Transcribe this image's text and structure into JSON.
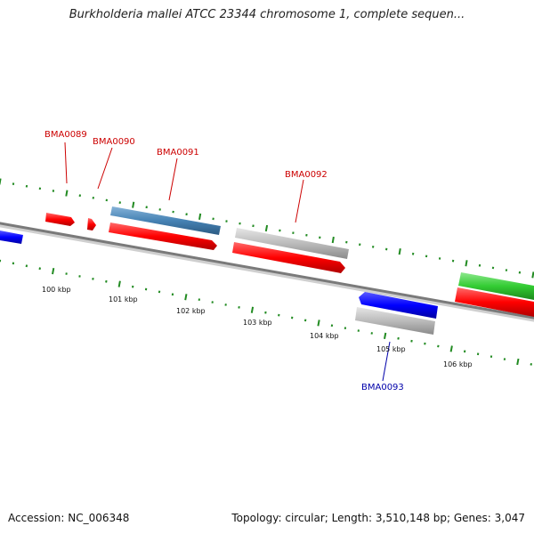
{
  "title": "Burkholderia mallei ATCC 23344 chromosome 1, complete sequen...",
  "footer": {
    "accession": "Accession: NC_006348",
    "summary": "Topology: circular; Length: 3,510,148 bp; Genes: 3,047"
  },
  "colors": {
    "forward_gene": "#ff0000",
    "highlight_gene": "#4682b4",
    "reverse_gene": "#0000ff",
    "green_gene": "#33cc33",
    "grey_feature": "#bbbbbb",
    "backbone": "#777777",
    "tick": "#228b22",
    "forward_label": "#cc0000",
    "reverse_label": "#0000aa"
  },
  "ticks": [
    {
      "label": "100 kbp"
    },
    {
      "label": "101 kbp"
    },
    {
      "label": "102 kbp"
    },
    {
      "label": "103 kbp"
    },
    {
      "label": "104 kbp"
    },
    {
      "label": "105 kbp"
    },
    {
      "label": "106 kbp"
    }
  ],
  "genes": [
    {
      "name": "BMA0089",
      "strand": "forward"
    },
    {
      "name": "BMA0090",
      "strand": "forward"
    },
    {
      "name": "BMA0091",
      "strand": "forward"
    },
    {
      "name": "BMA0092",
      "strand": "forward"
    },
    {
      "name": "BMA0093",
      "strand": "reverse"
    }
  ]
}
